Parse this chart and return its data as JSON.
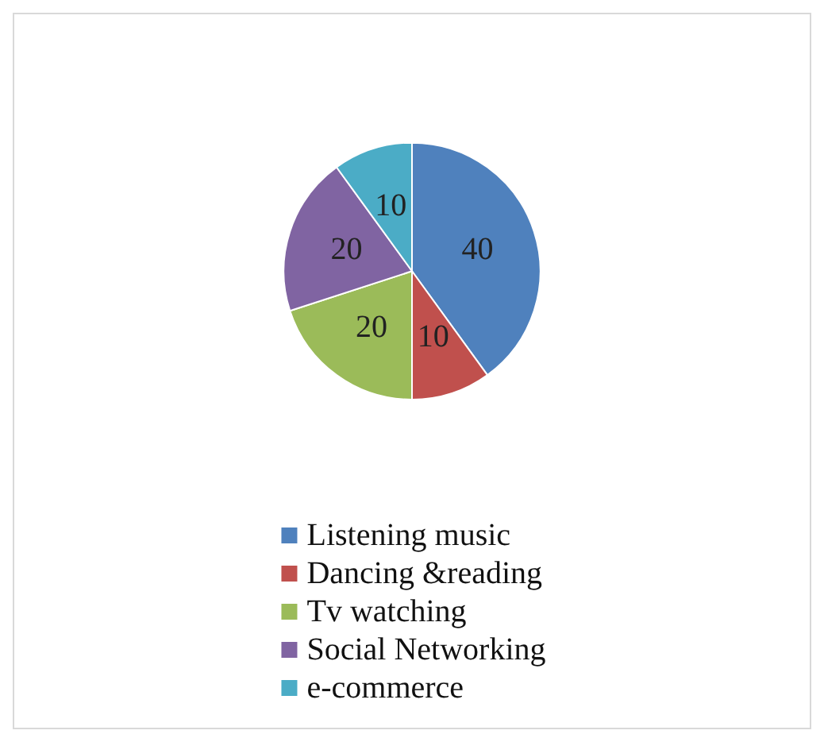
{
  "chart_data": {
    "type": "pie",
    "categories": [
      "Listening music",
      "Dancing &reading",
      "Tv watching",
      "Social Networking",
      "e-commerce"
    ],
    "values": [
      40,
      10,
      20,
      20,
      10
    ],
    "colors": [
      "#4f81bd",
      "#c0504d",
      "#9bbb59",
      "#8064a2",
      "#4bacc6"
    ],
    "data_labels": true,
    "legend": "bottom"
  }
}
